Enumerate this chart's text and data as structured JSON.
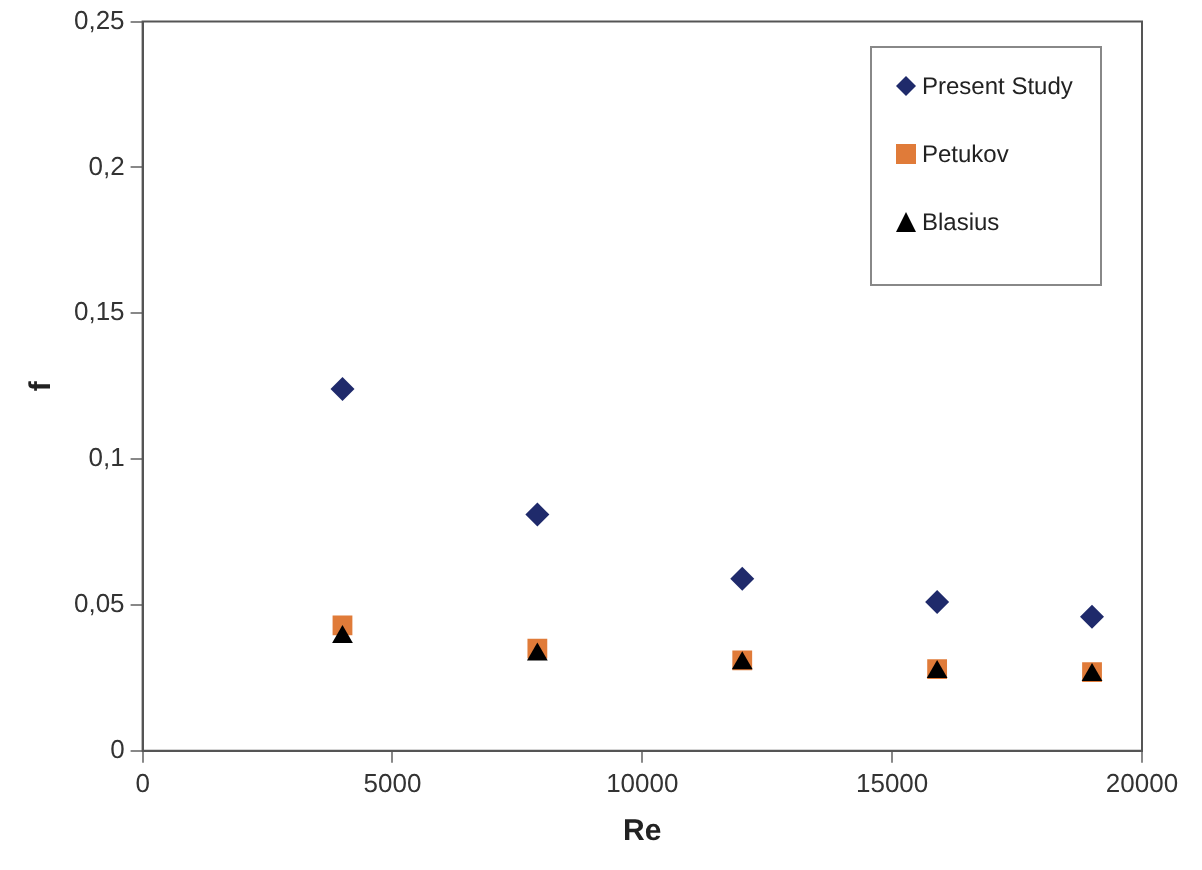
{
  "chart_data": {
    "type": "scatter",
    "xlabel": "Re",
    "ylabel": "f",
    "xlim": [
      0,
      20000
    ],
    "xticks": [
      0,
      5000,
      10000,
      15000,
      20000
    ],
    "ylim": [
      0,
      0.25
    ],
    "yticks": [
      {
        "value": 0,
        "label": "0"
      },
      {
        "value": 0.05,
        "label": "0,05"
      },
      {
        "value": 0.1,
        "label": "0,1"
      },
      {
        "value": 0.15,
        "label": "0,15"
      },
      {
        "value": 0.2,
        "label": "0,2"
      },
      {
        "value": 0.25,
        "label": "0,25"
      }
    ],
    "grid": false,
    "legend": "top right",
    "series": [
      {
        "name": "Present Study",
        "color": "#1f2a6b",
        "marker": "diamond",
        "x": [
          4000,
          7900,
          12000,
          15900,
          19000
        ],
        "values": [
          0.124,
          0.081,
          0.059,
          0.051,
          0.046
        ]
      },
      {
        "name": "Petukov",
        "color": "#e07b39",
        "marker": "square",
        "x": [
          4000,
          7900,
          12000,
          15900,
          19000
        ],
        "values": [
          0.043,
          0.035,
          0.031,
          0.028,
          0.027
        ]
      },
      {
        "name": "Blasius",
        "color": "#000000",
        "marker": "triangle",
        "x": [
          4000,
          7900,
          12000,
          15900,
          19000
        ],
        "values": [
          0.039,
          0.033,
          0.03,
          0.027,
          0.026
        ]
      }
    ]
  }
}
